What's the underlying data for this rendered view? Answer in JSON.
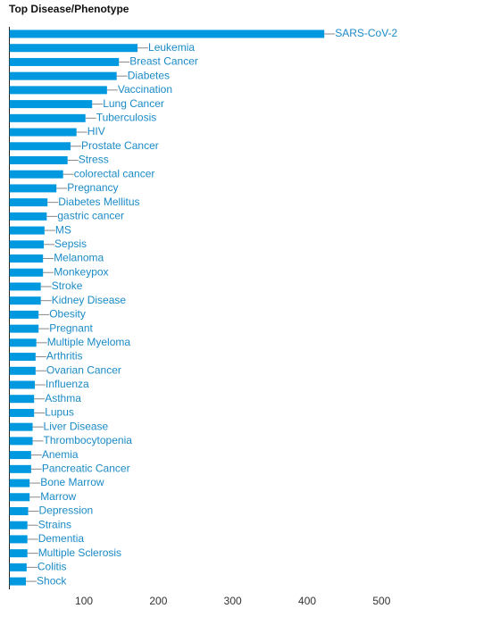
{
  "chart_data": {
    "type": "bar",
    "orientation": "horizontal",
    "title": "Top Disease/Phenotype",
    "categories": [
      "SARS-CoV-2",
      "Leukemia",
      "Breast Cancer",
      "Diabetes",
      "Vaccination",
      "Lung Cancer",
      "Tuberculosis",
      "HIV",
      "Prostate Cancer",
      "Stress",
      "colorectal cancer",
      "Pregnancy",
      "Diabetes Mellitus",
      "gastric cancer",
      "MS",
      "Sepsis",
      "Melanoma",
      "Monkeypox",
      "Stroke",
      "Kidney Disease",
      "Obesity",
      "Pregnant",
      "Multiple Myeloma",
      "Arthritis",
      "Ovarian Cancer",
      "Influenza",
      "Asthma",
      "Lupus",
      "Liver Disease",
      "Thrombocytopenia",
      "Anemia",
      "Pancreatic Cancer",
      "Bone Marrow",
      "Marrow",
      "Depression",
      "Strains",
      "Dementia",
      "Multiple Sclerosis",
      "Colitis",
      "Shock"
    ],
    "values": [
      423,
      172,
      147,
      144,
      131,
      111,
      102,
      90,
      82,
      78,
      72,
      63,
      51,
      50,
      47,
      46,
      45,
      45,
      42,
      42,
      39,
      39,
      36,
      35,
      35,
      34,
      33,
      33,
      31,
      31,
      29,
      29,
      27,
      27,
      25,
      24,
      24,
      24,
      23,
      22
    ],
    "color": "#0099e0",
    "label_color": "#1a8ac6",
    "xlim": [
      0,
      600
    ],
    "xticks": [
      100,
      200,
      300,
      400,
      500
    ]
  }
}
